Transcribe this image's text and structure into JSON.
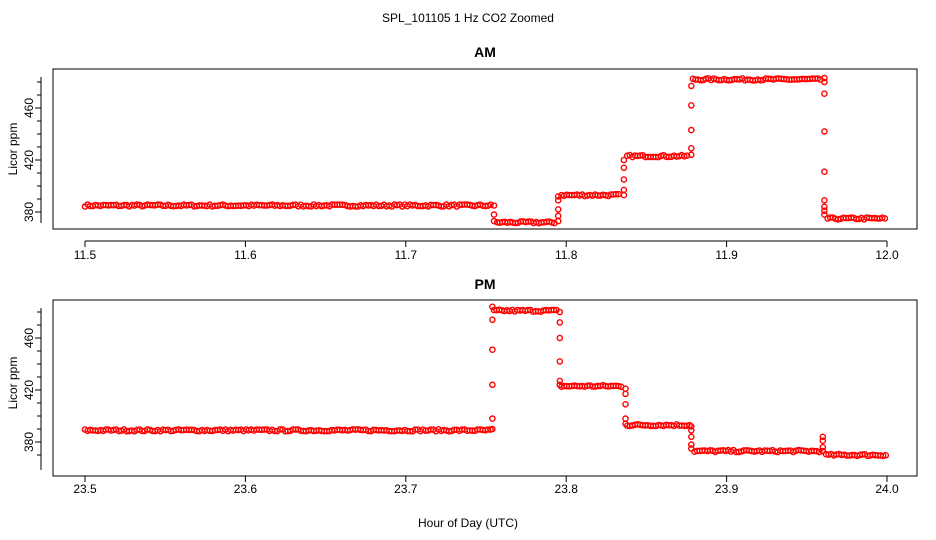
{
  "figure": {
    "title": "SPL_101105  1 Hz CO2 Zoomed",
    "xlabel": "Hour of Day (UTC)",
    "point_color": "#ff0000"
  },
  "chart_data": [
    {
      "type": "scatter",
      "title": "AM",
      "xlabel": "Hour of Day (UTC)",
      "ylabel": "Licor ppm",
      "xlim": [
        11.5,
        12.0
      ],
      "ylim": [
        366,
        486
      ],
      "x_ticks": [
        "11.5",
        "11.6",
        "11.7",
        "11.8",
        "11.9",
        "12.0"
      ],
      "y_ticks": [
        "380",
        "420",
        "460"
      ],
      "series": [
        {
          "name": "CO2",
          "segments": [
            {
              "x_start": 11.5,
              "x_end": 11.753,
              "level": 385
            },
            {
              "x_start": 11.757,
              "x_end": 11.794,
              "level": 372
            },
            {
              "x_start": 11.797,
              "x_end": 11.834,
              "level": 393
            },
            {
              "x_start": 11.838,
              "x_end": 11.876,
              "level": 423
            },
            {
              "x_start": 11.879,
              "x_end": 11.96,
              "level": 482
            },
            {
              "x_start": 11.963,
              "x_end": 12.0,
              "level": 375
            }
          ],
          "transitions": [
            {
              "x": 11.755,
              "y": [
                385,
                378,
                373
              ]
            },
            {
              "x": 11.795,
              "y": [
                373,
                377,
                382,
                389,
                392
              ]
            },
            {
              "x": 11.836,
              "y": [
                393,
                397,
                405,
                414,
                420
              ]
            },
            {
              "x": 11.878,
              "y": [
                424,
                429,
                443,
                462,
                477
              ]
            },
            {
              "x": 11.961,
              "y": [
                483,
                480,
                471,
                442,
                411,
                389,
                384,
                381,
                378
              ]
            }
          ]
        }
      ]
    },
    {
      "type": "scatter",
      "title": "PM",
      "xlabel": "Hour of Day (UTC)",
      "ylabel": "Licor ppm",
      "xlim": [
        23.5,
        24.0
      ],
      "ylim": [
        366,
        486
      ],
      "x_ticks": [
        "23.5",
        "23.6",
        "23.7",
        "23.8",
        "23.9",
        "24.0"
      ],
      "y_ticks": [
        "380",
        "420",
        "460"
      ],
      "series": [
        {
          "name": "CO2",
          "segments": [
            {
              "x_start": 23.5,
              "x_end": 23.753,
              "level": 389
            },
            {
              "x_start": 23.755,
              "x_end": 23.795,
              "level": 481
            },
            {
              "x_start": 23.797,
              "x_end": 23.835,
              "level": 423
            },
            {
              "x_start": 23.838,
              "x_end": 23.877,
              "level": 393
            },
            {
              "x_start": 23.88,
              "x_end": 23.958,
              "level": 373
            },
            {
              "x_start": 23.962,
              "x_end": 24.0,
              "level": 370
            }
          ],
          "transitions": [
            {
              "x": 23.754,
              "y": [
                390,
                398,
                424,
                451,
                474,
                484
              ]
            },
            {
              "x": 23.796,
              "y": [
                480,
                472,
                460,
                442,
                427,
                424
              ]
            },
            {
              "x": 23.837,
              "y": [
                421,
                417,
                409,
                398,
                394
              ]
            },
            {
              "x": 23.878,
              "y": [
                392,
                389,
                384,
                378,
                375
              ]
            },
            {
              "x": 23.96,
              "y": [
                373,
                376,
                381,
                384
              ]
            }
          ]
        }
      ]
    }
  ]
}
